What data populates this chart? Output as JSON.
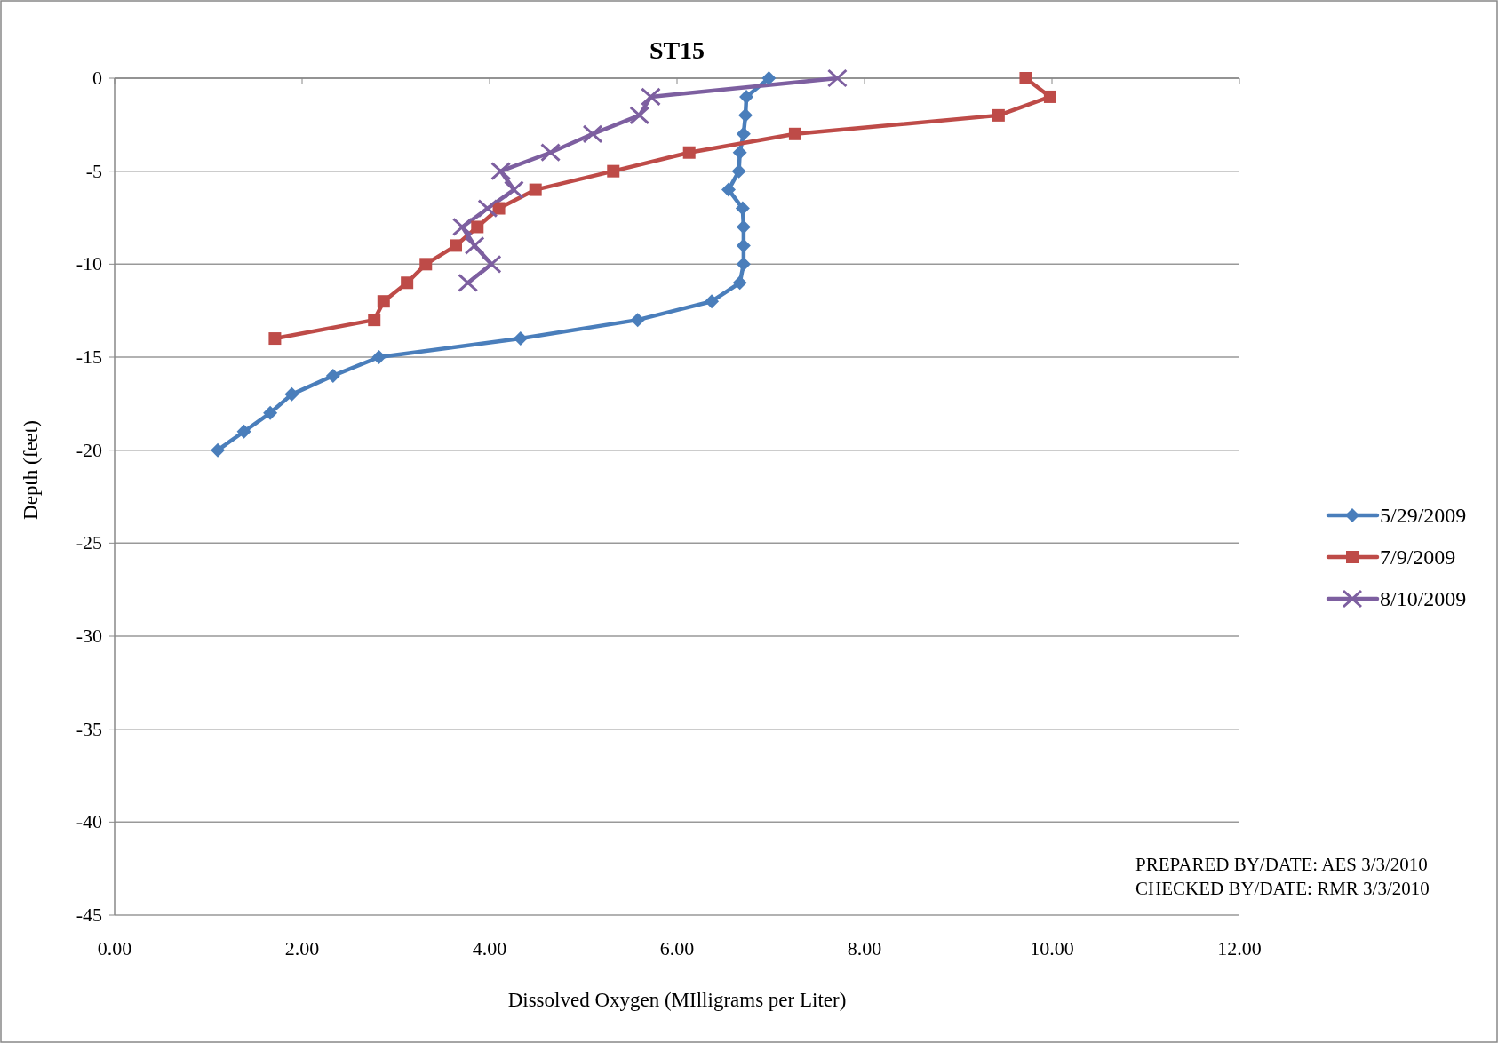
{
  "chart_data": {
    "type": "line",
    "title": "ST15",
    "xlabel": "Dissolved Oxygen (MIlligrams per Liter)",
    "ylabel": "Depth (feet)",
    "xlim": [
      0,
      12
    ],
    "xticks": [
      {
        "value": 0,
        "label": "0.00"
      },
      {
        "value": 2,
        "label": "2.00"
      },
      {
        "value": 4,
        "label": "4.00"
      },
      {
        "value": 6,
        "label": "6.00"
      },
      {
        "value": 8,
        "label": "8.00"
      },
      {
        "value": 10,
        "label": "10.00"
      },
      {
        "value": 12,
        "label": "12.00"
      }
    ],
    "ylim": [
      -45,
      0
    ],
    "yticks": [
      -45,
      -40,
      -35,
      -30,
      -25,
      -20,
      -15,
      -10,
      -5,
      0
    ],
    "grid": "y",
    "legend": "right",
    "series": [
      {
        "name": "5/29/2009",
        "color": "#4a7ebb",
        "marker": "diamond",
        "x": [
          6.98,
          6.74,
          6.73,
          6.71,
          6.67,
          6.66,
          6.55,
          6.7,
          6.71,
          6.71,
          6.71,
          6.67,
          6.37,
          5.58,
          4.33,
          2.82,
          2.33,
          1.89,
          1.66,
          1.38,
          1.1
        ],
        "values": [
          0,
          -1,
          -2,
          -3,
          -4,
          -5,
          -6,
          -7,
          -8,
          -9,
          -10,
          -11,
          -12,
          -13,
          -14,
          -15,
          -16,
          -17,
          -18,
          -19,
          -20
        ]
      },
      {
        "name": "7/9/2009",
        "color": "#be4b48",
        "marker": "square",
        "x": [
          9.72,
          9.98,
          9.43,
          7.26,
          6.13,
          5.32,
          4.49,
          4.1,
          3.87,
          3.64,
          3.32,
          3.12,
          2.87,
          2.77,
          1.71
        ],
        "values": [
          0,
          -1,
          -2,
          -3,
          -4,
          -5,
          -6,
          -7,
          -8,
          -9,
          -10,
          -11,
          -12,
          -13,
          -14
        ]
      },
      {
        "name": "8/10/2009",
        "color": "#7d5fa0",
        "marker": "cross",
        "x": [
          7.71,
          5.72,
          5.6,
          5.1,
          4.65,
          4.12,
          4.26,
          3.98,
          3.71,
          3.84,
          4.02,
          3.77
        ],
        "values": [
          0,
          -1,
          -2,
          -3,
          -4,
          -5,
          -6,
          -7,
          -8,
          -9,
          -10,
          -11
        ]
      }
    ],
    "annotations": [
      "PREPARED BY/DATE:  AES 3/3/2010",
      "CHECKED BY/DATE:  RMR 3/3/2010"
    ]
  }
}
